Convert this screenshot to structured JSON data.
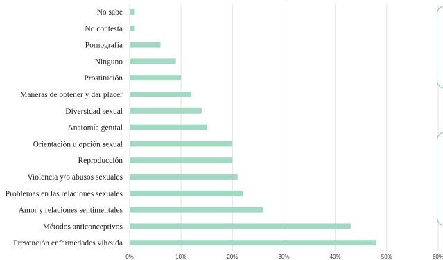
{
  "chart_data": {
    "type": "bar",
    "orientation": "horizontal",
    "categories": [
      "No sabe",
      "No contesta",
      "Pornografía",
      "Ninguno",
      "Prostitución",
      "Maneras de obtener y dar placer",
      "Diversidad sexual",
      "Anatomía genital",
      "Orientación u opción sexual",
      "Reproducción",
      "Violencia y/o abusos sexuales",
      "Problemas en las relaciones sexuales",
      "Amor y relaciones sentimentales",
      "Métodos anticonceptivos",
      "Prevención enfermedades vih/sida"
    ],
    "values": [
      1,
      1,
      6,
      9,
      10,
      12,
      14,
      15,
      20,
      20,
      21,
      22,
      26,
      43,
      48
    ],
    "xlim": [
      0,
      60
    ],
    "xticks": [
      "0%",
      "10%",
      "20%",
      "30%",
      "40%",
      "50%",
      "60%"
    ],
    "xtick_values": [
      0,
      10,
      20,
      30,
      40,
      50,
      60
    ],
    "bar_color": "#a3d9c3",
    "grid_color": "#e2e2e2",
    "grid": true
  },
  "colors": {
    "panel_border": "#7fb8d4"
  }
}
